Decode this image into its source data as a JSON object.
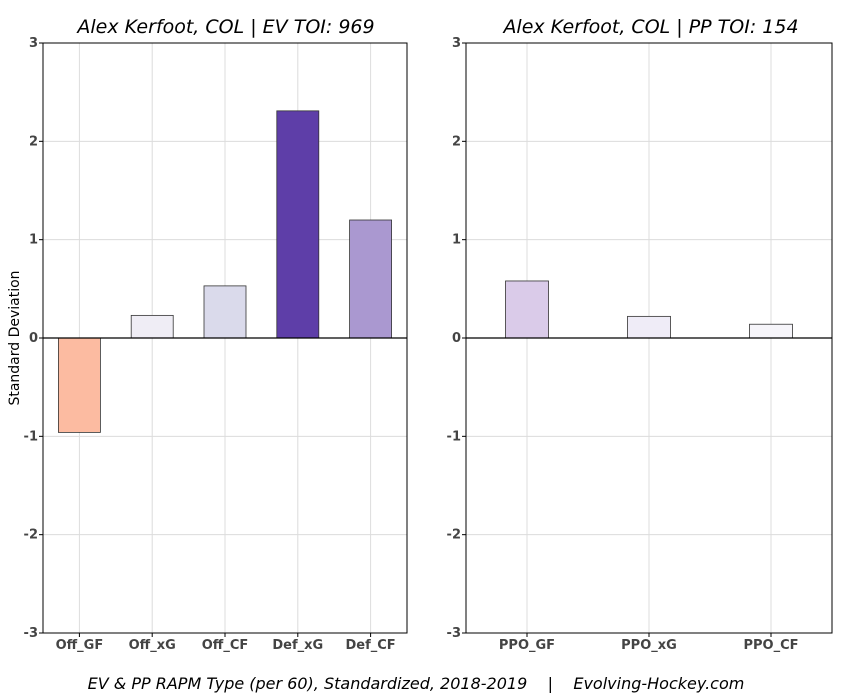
{
  "caption": "EV & PP RAPM Type (per 60), Standardized, 2018-2019    |    Evolving-Hockey.com",
  "ylabel": "Standard Deviation",
  "chart_data": [
    {
      "type": "bar",
      "title": "Alex Kerfoot, COL  |  EV TOI: 969",
      "xlabel": "",
      "ylabel": "Standard Deviation",
      "ylim": [
        -3,
        3
      ],
      "yticks": [
        -3,
        -2,
        -1,
        0,
        1,
        2,
        3
      ],
      "grid": true,
      "categories": [
        "Off_GF",
        "Off_xG",
        "Off_CF",
        "Def_xG",
        "Def_CF"
      ],
      "values": [
        -0.96,
        0.23,
        0.53,
        2.31,
        1.2
      ],
      "colors": [
        "#fcbba1",
        "#efedf5",
        "#dadaeb",
        "#5e3ea8",
        "#aa98d0"
      ]
    },
    {
      "type": "bar",
      "title": "Alex Kerfoot, COL  |  PP TOI: 154",
      "xlabel": "",
      "ylabel": "",
      "ylim": [
        -3,
        3
      ],
      "yticks": [
        -3,
        -2,
        -1,
        0,
        1,
        2,
        3
      ],
      "grid": true,
      "categories": [
        "PPO_GF",
        "PPO_xG",
        "PPO_CF"
      ],
      "values": [
        0.58,
        0.22,
        0.14
      ],
      "colors": [
        "#dacbe9",
        "#efecf7",
        "#f6f5fa"
      ]
    }
  ]
}
